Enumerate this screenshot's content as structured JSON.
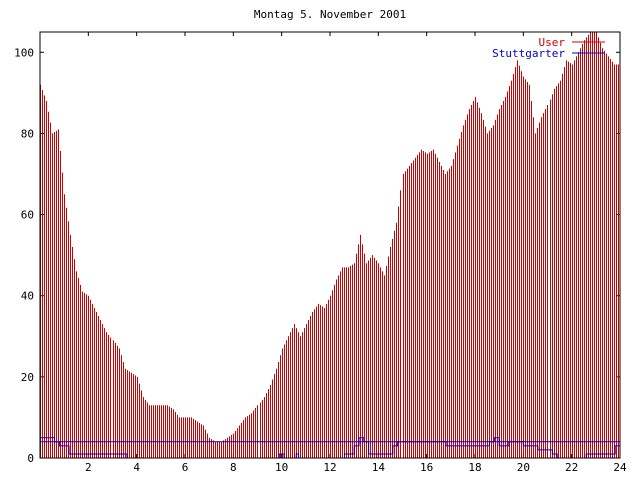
{
  "chart_data": {
    "type": "bar",
    "title": "Montag 5. November 2001",
    "xlabel": "",
    "ylabel": "",
    "xlim": [
      0,
      24
    ],
    "ylim": [
      0,
      105
    ],
    "xticks": [
      2,
      4,
      6,
      8,
      10,
      12,
      14,
      16,
      18,
      20,
      22,
      24
    ],
    "yticks": [
      0,
      20,
      40,
      60,
      80,
      100
    ],
    "grid": false,
    "legend_position": "top-right",
    "colors": {
      "user": "#cc0000",
      "stuttgarter": "#0000cc",
      "axis": "#000000"
    },
    "series": [
      {
        "name": "User",
        "style": "impulses",
        "points": [
          [
            0.0,
            92
          ],
          [
            0.25,
            88
          ],
          [
            0.5,
            80
          ],
          [
            0.75,
            81
          ],
          [
            1.0,
            65
          ],
          [
            1.25,
            55
          ],
          [
            1.5,
            46
          ],
          [
            1.75,
            41
          ],
          [
            2.0,
            40
          ],
          [
            2.25,
            37
          ],
          [
            2.5,
            34
          ],
          [
            2.75,
            31
          ],
          [
            3.0,
            29
          ],
          [
            3.25,
            27
          ],
          [
            3.5,
            22
          ],
          [
            3.75,
            21
          ],
          [
            4.0,
            20
          ],
          [
            4.25,
            15
          ],
          [
            4.5,
            13
          ],
          [
            4.75,
            13
          ],
          [
            5.0,
            13
          ],
          [
            5.25,
            13
          ],
          [
            5.5,
            12
          ],
          [
            5.75,
            10
          ],
          [
            6.0,
            10
          ],
          [
            6.25,
            10
          ],
          [
            6.5,
            9
          ],
          [
            6.75,
            8
          ],
          [
            7.0,
            5
          ],
          [
            7.25,
            4
          ],
          [
            7.5,
            4
          ],
          [
            7.75,
            5
          ],
          [
            8.0,
            6
          ],
          [
            8.25,
            8
          ],
          [
            8.5,
            10
          ],
          [
            8.75,
            11
          ],
          [
            9.0,
            13
          ],
          [
            9.25,
            15
          ],
          [
            9.5,
            18
          ],
          [
            9.75,
            22
          ],
          [
            10.0,
            27
          ],
          [
            10.25,
            30
          ],
          [
            10.5,
            33
          ],
          [
            10.75,
            30
          ],
          [
            11.0,
            33
          ],
          [
            11.25,
            36
          ],
          [
            11.5,
            38
          ],
          [
            11.75,
            37
          ],
          [
            12.0,
            40
          ],
          [
            12.25,
            44
          ],
          [
            12.5,
            47
          ],
          [
            12.75,
            47
          ],
          [
            13.0,
            48
          ],
          [
            13.25,
            55
          ],
          [
            13.5,
            48
          ],
          [
            13.75,
            50
          ],
          [
            14.0,
            48
          ],
          [
            14.25,
            45
          ],
          [
            14.5,
            52
          ],
          [
            14.75,
            58
          ],
          [
            15.0,
            70
          ],
          [
            15.25,
            72
          ],
          [
            15.5,
            74
          ],
          [
            15.75,
            76
          ],
          [
            16.0,
            75
          ],
          [
            16.25,
            76
          ],
          [
            16.5,
            73
          ],
          [
            16.75,
            70
          ],
          [
            17.0,
            72
          ],
          [
            17.25,
            77
          ],
          [
            17.5,
            82
          ],
          [
            17.75,
            86
          ],
          [
            18.0,
            89
          ],
          [
            18.25,
            85
          ],
          [
            18.5,
            80
          ],
          [
            18.75,
            82
          ],
          [
            19.0,
            86
          ],
          [
            19.25,
            89
          ],
          [
            19.5,
            93
          ],
          [
            19.75,
            98
          ],
          [
            20.0,
            94
          ],
          [
            20.25,
            92
          ],
          [
            20.5,
            80
          ],
          [
            20.75,
            84
          ],
          [
            21.0,
            87
          ],
          [
            21.25,
            91
          ],
          [
            21.5,
            93
          ],
          [
            21.75,
            98
          ],
          [
            22.0,
            97
          ],
          [
            22.25,
            100
          ],
          [
            22.5,
            103
          ],
          [
            22.75,
            105
          ],
          [
            23.0,
            105
          ],
          [
            23.25,
            101
          ],
          [
            23.5,
            99
          ],
          [
            23.75,
            97
          ]
        ]
      },
      {
        "name": "Stuttgarter",
        "style": "steps",
        "points": [
          [
            0.0,
            5
          ],
          [
            0.6,
            4
          ],
          [
            0.8,
            3
          ],
          [
            1.2,
            1
          ],
          [
            3.6,
            0
          ],
          [
            9.9,
            1
          ],
          [
            10.1,
            0
          ],
          [
            10.6,
            1
          ],
          [
            10.7,
            0
          ],
          [
            12.6,
            1
          ],
          [
            13.0,
            3
          ],
          [
            13.2,
            5
          ],
          [
            13.4,
            4
          ],
          [
            13.6,
            1
          ],
          [
            14.6,
            3
          ],
          [
            14.8,
            4
          ],
          [
            15.2,
            4
          ],
          [
            16.8,
            3
          ],
          [
            18.6,
            4
          ],
          [
            18.8,
            5
          ],
          [
            19.0,
            3
          ],
          [
            19.4,
            4
          ],
          [
            20.0,
            3
          ],
          [
            20.6,
            2
          ],
          [
            21.2,
            1
          ],
          [
            21.4,
            0
          ],
          [
            22.6,
            1
          ],
          [
            23.8,
            3
          ],
          [
            24.0,
            3
          ]
        ],
        "reference_level": 4
      }
    ]
  }
}
